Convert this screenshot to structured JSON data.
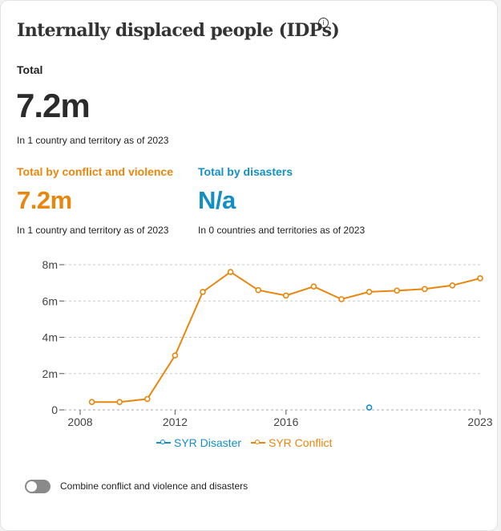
{
  "title": "Internally displaced people (IDPs)",
  "info_icon": "info-icon",
  "total": {
    "label": "Total",
    "value": "7.2m",
    "note": "In 1 country and territory as of 2023"
  },
  "conflict": {
    "label": "Total by conflict and violence",
    "value": "7.2m",
    "note": "In 1 country and territory as of 2023",
    "color": "#e8860d"
  },
  "disasters": {
    "label": "Total by disasters",
    "value": "N/a",
    "note": "In 0 countries and territories as of 2023",
    "color": "#138fc6"
  },
  "chart_data": {
    "type": "line",
    "xlim": [
      2008,
      2023
    ],
    "ylim": [
      0,
      8000000
    ],
    "x_ticks": [
      2008,
      2012,
      2016,
      2023
    ],
    "y_ticks": [
      0,
      2000000,
      4000000,
      6000000,
      8000000
    ],
    "y_tick_labels": [
      "0",
      "2m",
      "4m",
      "6m",
      "8m"
    ],
    "grid": true,
    "legend": "bottom",
    "series": [
      {
        "name": "SYR Disaster",
        "color": "#138fc6",
        "x": [
          2019
        ],
        "y": [
          130000
        ]
      },
      {
        "name": "SYR Conflict",
        "color": "#e8860d",
        "x": [
          2009,
          2010,
          2011,
          2012,
          2013,
          2014,
          2015,
          2016,
          2017,
          2018,
          2019,
          2020,
          2021,
          2022,
          2023
        ],
        "y": [
          433000,
          433000,
          600000,
          3000000,
          6500000,
          7600000,
          6600000,
          6300000,
          6800000,
          6100000,
          6500000,
          6570000,
          6660000,
          6860000,
          7250000
        ]
      }
    ]
  },
  "toggle": {
    "label": "Combine conflict and violence and disasters",
    "checked": false
  }
}
